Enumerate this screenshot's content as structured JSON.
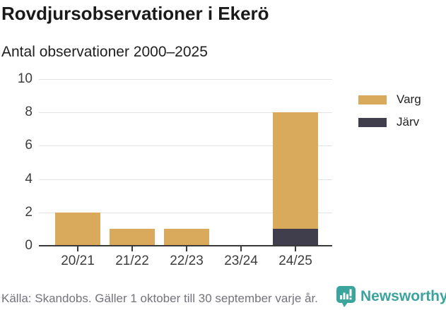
{
  "header": {
    "title": "Rovdjursobservationer i Ekerö",
    "subtitle": "Antal observationer 2000–2025"
  },
  "chart_data": {
    "type": "bar",
    "stacked": true,
    "title": "Rovdjursobservationer i Ekerö",
    "subtitle": "Antal observationer 2000–2025",
    "categories": [
      "20/21",
      "21/22",
      "22/23",
      "23/24",
      "24/25"
    ],
    "series": [
      {
        "name": "Varg",
        "color": "#d9aa5c",
        "values": [
          2,
          1,
          1,
          0,
          7
        ]
      },
      {
        "name": "Järv",
        "color": "#403e4d",
        "values": [
          0,
          0,
          0,
          0,
          1
        ]
      }
    ],
    "totals": [
      2,
      1,
      1,
      0,
      8
    ],
    "xlabel": "",
    "ylabel": "",
    "ylim": [
      0,
      10
    ],
    "yticks": [
      0,
      2,
      4,
      6,
      8,
      10
    ],
    "grid": true,
    "legend_position": "right"
  },
  "colors": {
    "varg": "#d9aa5c",
    "jarv": "#403e4d",
    "axis": "#3a3a3a",
    "gridline": "#e3e3e3",
    "brand_teal": "#3aa49d"
  },
  "footer": {
    "source": "Källa: Skandobs. Gäller 1 oktober till 30 september varje år.",
    "brand": "Newsworthy"
  }
}
